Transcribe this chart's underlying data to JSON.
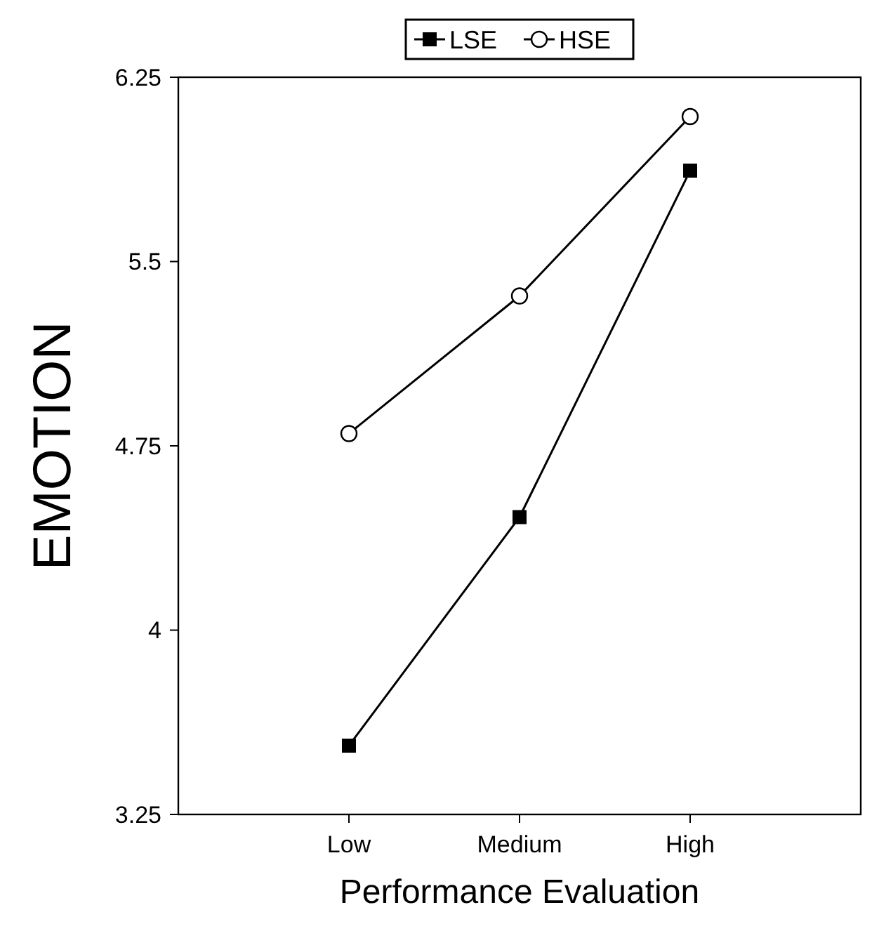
{
  "chart_data": {
    "type": "line",
    "xlabel": "Performance Evaluation",
    "ylabel": "EMOTION",
    "categories": [
      "Low",
      "Medium",
      "High"
    ],
    "series": [
      {
        "name": "LSE",
        "color": "#000000",
        "marker": "square",
        "values": [
          3.53,
          4.46,
          5.87
        ]
      },
      {
        "name": "HSE",
        "color": "#000000",
        "marker": "circle",
        "values": [
          4.8,
          5.36,
          6.09
        ]
      }
    ],
    "ylim": [
      3.25,
      6.25
    ],
    "yticks": [
      3.25,
      4,
      4.75,
      5.5,
      6.25
    ],
    "grid": false,
    "legend": "top",
    "line_style": "solid"
  }
}
